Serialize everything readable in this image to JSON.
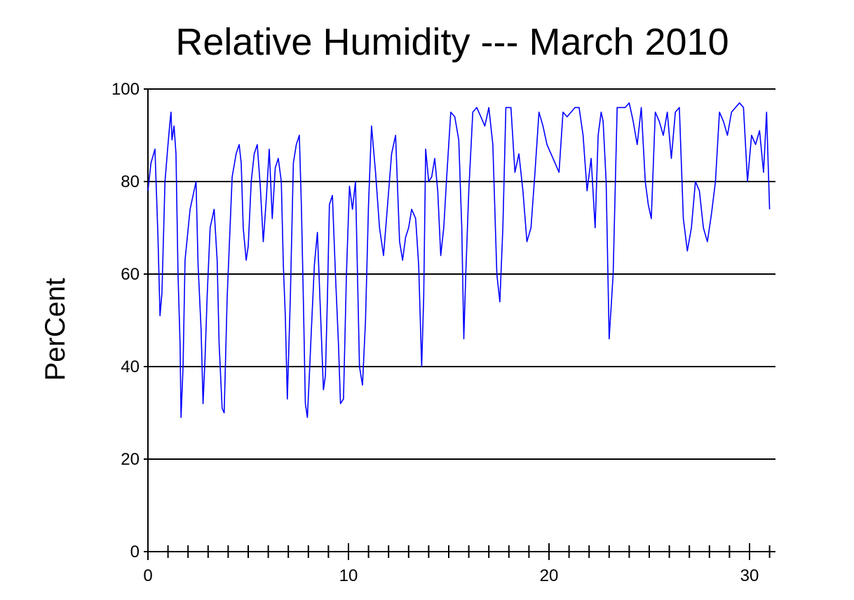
{
  "chart_data": {
    "type": "line",
    "title": "Relative Humidity --- March 2010",
    "xlabel": "",
    "ylabel": "PerCent",
    "xlim": [
      0,
      31
    ],
    "ylim": [
      0,
      100
    ],
    "x_ticks": [
      0,
      10,
      20,
      30
    ],
    "x_minor_ticks": [
      1,
      2,
      3,
      4,
      5,
      6,
      7,
      8,
      9,
      11,
      12,
      13,
      14,
      15,
      16,
      17,
      18,
      19,
      21,
      22,
      23,
      24,
      25,
      26,
      27,
      28,
      29,
      31
    ],
    "y_ticks": [
      0,
      20,
      40,
      60,
      80,
      100
    ],
    "grid": "horizontal",
    "line_color": "#0000ff",
    "series": [
      {
        "x": [
          0.0,
          0.15,
          0.35,
          0.5,
          0.6,
          0.7,
          0.85,
          1.0,
          1.1,
          1.15,
          1.2,
          1.3,
          1.4,
          1.5,
          1.6,
          1.65,
          1.75,
          1.85,
          2.1,
          2.4,
          2.5,
          2.65,
          2.75,
          2.85,
          2.95,
          3.1,
          3.3,
          3.45,
          3.55,
          3.7,
          3.8,
          3.95,
          4.2,
          4.4,
          4.55,
          4.65,
          4.75,
          4.9,
          5.0,
          5.15,
          5.3,
          5.45,
          5.6,
          5.75,
          5.9,
          6.05,
          6.2,
          6.35,
          6.5,
          6.65,
          6.75,
          6.85,
          6.95,
          7.1,
          7.25,
          7.4,
          7.55,
          7.65,
          7.75,
          7.85,
          7.95,
          8.05,
          8.15,
          8.3,
          8.45,
          8.6,
          8.75,
          8.85,
          8.95,
          9.05,
          9.2,
          9.35,
          9.5,
          9.6,
          9.75,
          9.9,
          10.05,
          10.2,
          10.35,
          10.55,
          10.7,
          10.85,
          11.0,
          11.15,
          11.35,
          11.55,
          11.75,
          11.95,
          12.15,
          12.35,
          12.55,
          12.7,
          12.85,
          13.0,
          13.15,
          13.35,
          13.5,
          13.65,
          13.75,
          13.85,
          14.0,
          14.15,
          14.3,
          14.45,
          14.6,
          14.75,
          14.9,
          15.1,
          15.3,
          15.5,
          15.65,
          15.75,
          15.85,
          16.0,
          16.2,
          16.4,
          16.6,
          16.8,
          17.0,
          17.2,
          17.4,
          17.55,
          17.7,
          17.85,
          18.1,
          18.3,
          18.5,
          18.7,
          18.9,
          19.1,
          19.3,
          19.5,
          19.7,
          19.9,
          20.1,
          20.3,
          20.5,
          20.7,
          20.9,
          21.1,
          21.3,
          21.5,
          21.7,
          21.9,
          22.1,
          22.3,
          22.45,
          22.6,
          22.7,
          22.85,
          23.0,
          23.2,
          23.4,
          23.6,
          23.8,
          24.0,
          24.2,
          24.4,
          24.6,
          24.8,
          24.95,
          25.1,
          25.3,
          25.5,
          25.7,
          25.9,
          26.1,
          26.3,
          26.5,
          26.7,
          26.9,
          27.1,
          27.3,
          27.5,
          27.7,
          27.9,
          28.1,
          28.3,
          28.5,
          28.7,
          28.9,
          29.1,
          29.3,
          29.5,
          29.7,
          29.9,
          30.1,
          30.3,
          30.5,
          30.7,
          30.85,
          31.0
        ],
        "y": [
          78,
          84,
          87,
          68,
          51,
          56,
          80,
          88,
          93,
          95,
          89,
          92,
          86,
          60,
          45,
          29,
          40,
          63,
          74,
          80,
          62,
          48,
          32,
          42,
          55,
          70,
          74,
          63,
          45,
          31,
          30,
          55,
          81,
          86,
          88,
          84,
          70,
          63,
          66,
          80,
          86,
          88,
          79,
          67,
          76,
          87,
          72,
          83,
          85,
          80,
          62,
          51,
          33,
          55,
          84,
          88,
          90,
          75,
          55,
          32,
          29,
          38,
          48,
          62,
          69,
          52,
          35,
          38,
          55,
          75,
          77,
          60,
          45,
          32,
          33,
          60,
          79,
          74,
          80,
          40,
          36,
          50,
          75,
          92,
          82,
          70,
          64,
          75,
          86,
          90,
          67,
          63,
          68,
          70,
          74,
          72,
          62,
          40,
          55,
          87,
          80,
          81,
          85,
          78,
          64,
          70,
          81,
          95,
          94,
          89,
          70,
          46,
          60,
          78,
          95,
          96,
          94,
          92,
          96,
          88,
          60,
          54,
          70,
          96,
          96,
          82,
          86,
          78,
          67,
          70,
          82,
          95,
          92,
          88,
          86,
          84,
          82,
          95,
          94,
          95,
          96,
          96,
          90,
          78,
          85,
          70,
          90,
          95,
          93,
          80,
          46,
          60,
          96,
          96,
          96,
          97,
          93,
          88,
          96,
          80,
          75,
          72,
          95,
          93,
          90,
          95,
          85,
          95,
          96,
          72,
          65,
          70,
          80,
          78,
          70,
          67,
          73,
          80,
          95,
          93,
          90,
          95,
          96,
          97,
          96,
          80,
          90,
          88,
          91,
          82,
          95,
          74
        ]
      }
    ]
  }
}
